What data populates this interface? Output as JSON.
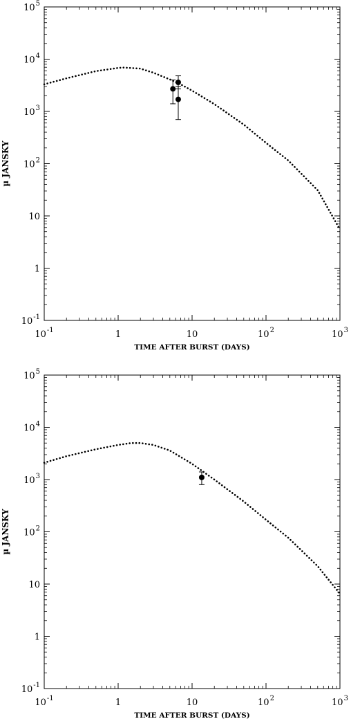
{
  "chart_data": [
    {
      "type": "scatter",
      "title": "",
      "xlabel": "TIME AFTER BURST (DAYS)",
      "ylabel": "µ JANSKY",
      "xscale": "log",
      "yscale": "log",
      "xlim": [
        0.1,
        1000
      ],
      "ylim": [
        0.1,
        100000
      ],
      "x_ticks": [
        {
          "value": 0.1,
          "base": "10",
          "exp": "-1"
        },
        {
          "value": 1,
          "base": "1",
          "exp": ""
        },
        {
          "value": 10,
          "base": "10",
          "exp": ""
        },
        {
          "value": 100,
          "base": "10",
          "exp": "2"
        },
        {
          "value": 1000,
          "base": "10",
          "exp": "3"
        }
      ],
      "y_ticks": [
        {
          "value": 0.1,
          "base": "10",
          "exp": "-1"
        },
        {
          "value": 1,
          "base": "1",
          "exp": ""
        },
        {
          "value": 10,
          "base": "10",
          "exp": ""
        },
        {
          "value": 100,
          "base": "10",
          "exp": "2"
        },
        {
          "value": 1000,
          "base": "10",
          "exp": "3"
        },
        {
          "value": 10000,
          "base": "10",
          "exp": "4"
        },
        {
          "value": 100000,
          "base": "10",
          "exp": "5"
        }
      ],
      "model_curve": {
        "style": "dotted",
        "x": [
          0.1,
          0.2,
          0.5,
          1.0,
          1.2,
          2.0,
          3.0,
          5.0,
          7.0,
          10,
          20,
          50,
          100,
          200,
          500,
          1000
        ],
        "y": [
          3300,
          4300,
          5900,
          6800,
          6900,
          6600,
          5500,
          4100,
          3300,
          2500,
          1380,
          560,
          250,
          115,
          31,
          5.5
        ]
      },
      "observations": [
        {
          "x": 5.5,
          "y": 2700,
          "err_low": 1400,
          "err_high": 4000
        },
        {
          "x": 6.5,
          "y": 3600,
          "err_low": 2700,
          "err_high": 4800
        },
        {
          "x": 6.5,
          "y": 1700,
          "err_low": 700,
          "err_high": 3000
        }
      ]
    },
    {
      "type": "scatter",
      "title": "",
      "xlabel": "TIME AFTER BURST (DAYS)",
      "ylabel": "µ JANSKY",
      "xscale": "log",
      "yscale": "log",
      "xlim": [
        0.1,
        1000
      ],
      "ylim": [
        0.1,
        100000
      ],
      "x_ticks": [
        {
          "value": 0.1,
          "base": "10",
          "exp": "-1"
        },
        {
          "value": 1,
          "base": "1",
          "exp": ""
        },
        {
          "value": 10,
          "base": "10",
          "exp": ""
        },
        {
          "value": 100,
          "base": "10",
          "exp": "2"
        },
        {
          "value": 1000,
          "base": "10",
          "exp": "3"
        }
      ],
      "y_ticks": [
        {
          "value": 0.1,
          "base": "10",
          "exp": "-1"
        },
        {
          "value": 1,
          "base": "1",
          "exp": ""
        },
        {
          "value": 10,
          "base": "10",
          "exp": ""
        },
        {
          "value": 100,
          "base": "10",
          "exp": "2"
        },
        {
          "value": 1000,
          "base": "10",
          "exp": "3"
        },
        {
          "value": 10000,
          "base": "10",
          "exp": "4"
        },
        {
          "value": 100000,
          "base": "10",
          "exp": "5"
        }
      ],
      "model_curve": {
        "style": "dotted",
        "x": [
          0.1,
          0.2,
          0.5,
          1.0,
          1.5,
          2.0,
          3.0,
          5.0,
          10,
          20,
          50,
          100,
          200,
          500,
          1000
        ],
        "y": [
          2100,
          2800,
          3800,
          4600,
          5000,
          5000,
          4600,
          3600,
          2000,
          1000,
          380,
          170,
          77,
          22,
          6.5
        ]
      },
      "observations": [
        {
          "x": 13.5,
          "y": 1100,
          "err_low": 800,
          "err_high": 1400
        }
      ]
    }
  ]
}
